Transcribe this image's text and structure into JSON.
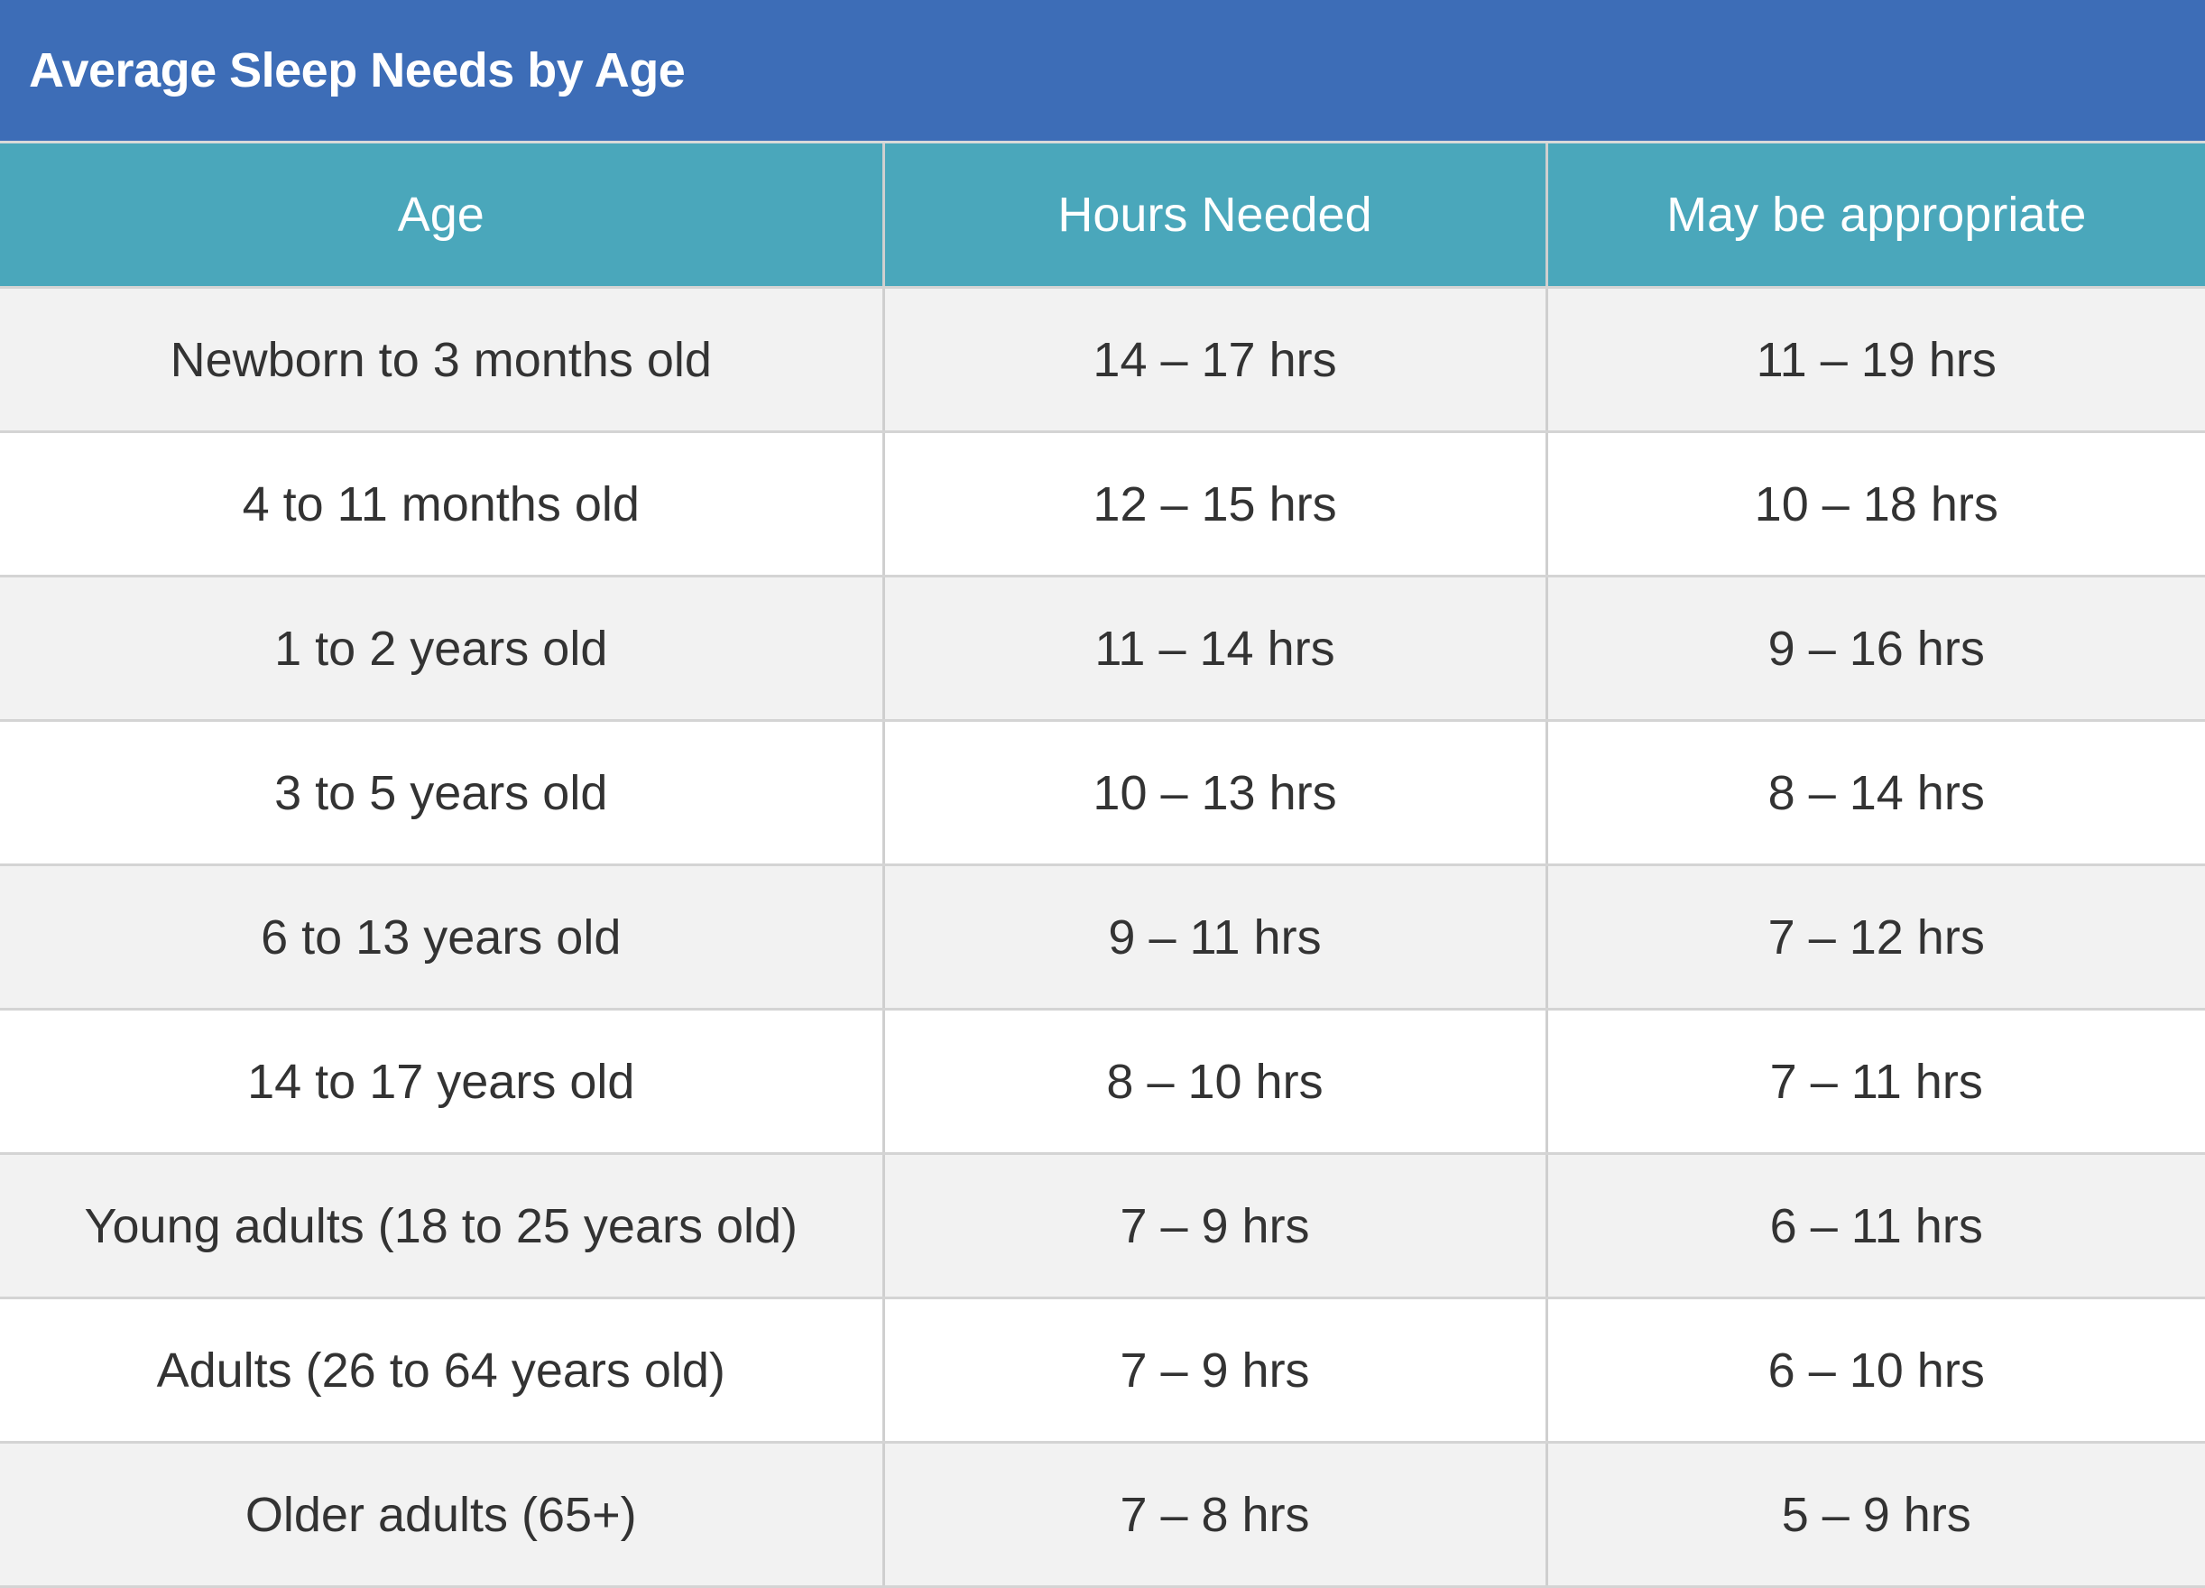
{
  "title": "Average Sleep Needs by Age",
  "columns": [
    "Age",
    "Hours Needed",
    "May be appropriate"
  ],
  "rows": [
    {
      "age": "Newborn to 3 months old",
      "hours": "14 – 17 hrs",
      "range": "11 – 19 hrs"
    },
    {
      "age": "4 to 11 months old",
      "hours": "12 – 15 hrs",
      "range": "10 – 18 hrs"
    },
    {
      "age": "1 to 2 years old",
      "hours": "11 – 14 hrs",
      "range": "9 – 16 hrs"
    },
    {
      "age": "3 to 5 years old",
      "hours": "10 – 13 hrs",
      "range": "8 – 14 hrs"
    },
    {
      "age": "6 to 13 years old",
      "hours": "9 – 11 hrs",
      "range": "7 – 12 hrs"
    },
    {
      "age": "14 to 17 years old",
      "hours": "8 – 10 hrs",
      "range": "7 – 11 hrs"
    },
    {
      "age": "Young adults (18 to 25 years old)",
      "hours": "7 – 9 hrs",
      "range": "6 – 11 hrs"
    },
    {
      "age": "Adults (26 to 64 years old)",
      "hours": "7 – 9 hrs",
      "range": "6 – 10 hrs"
    },
    {
      "age": "Older adults (65+)",
      "hours": "7 – 8 hrs",
      "range": "5 – 9 hrs"
    }
  ],
  "colors": {
    "title_bar": "#3d6db7",
    "header_row": "#4aa7bb",
    "row_shaded": "#f2f2f2",
    "row_plain": "#ffffff",
    "text": "#333333"
  }
}
